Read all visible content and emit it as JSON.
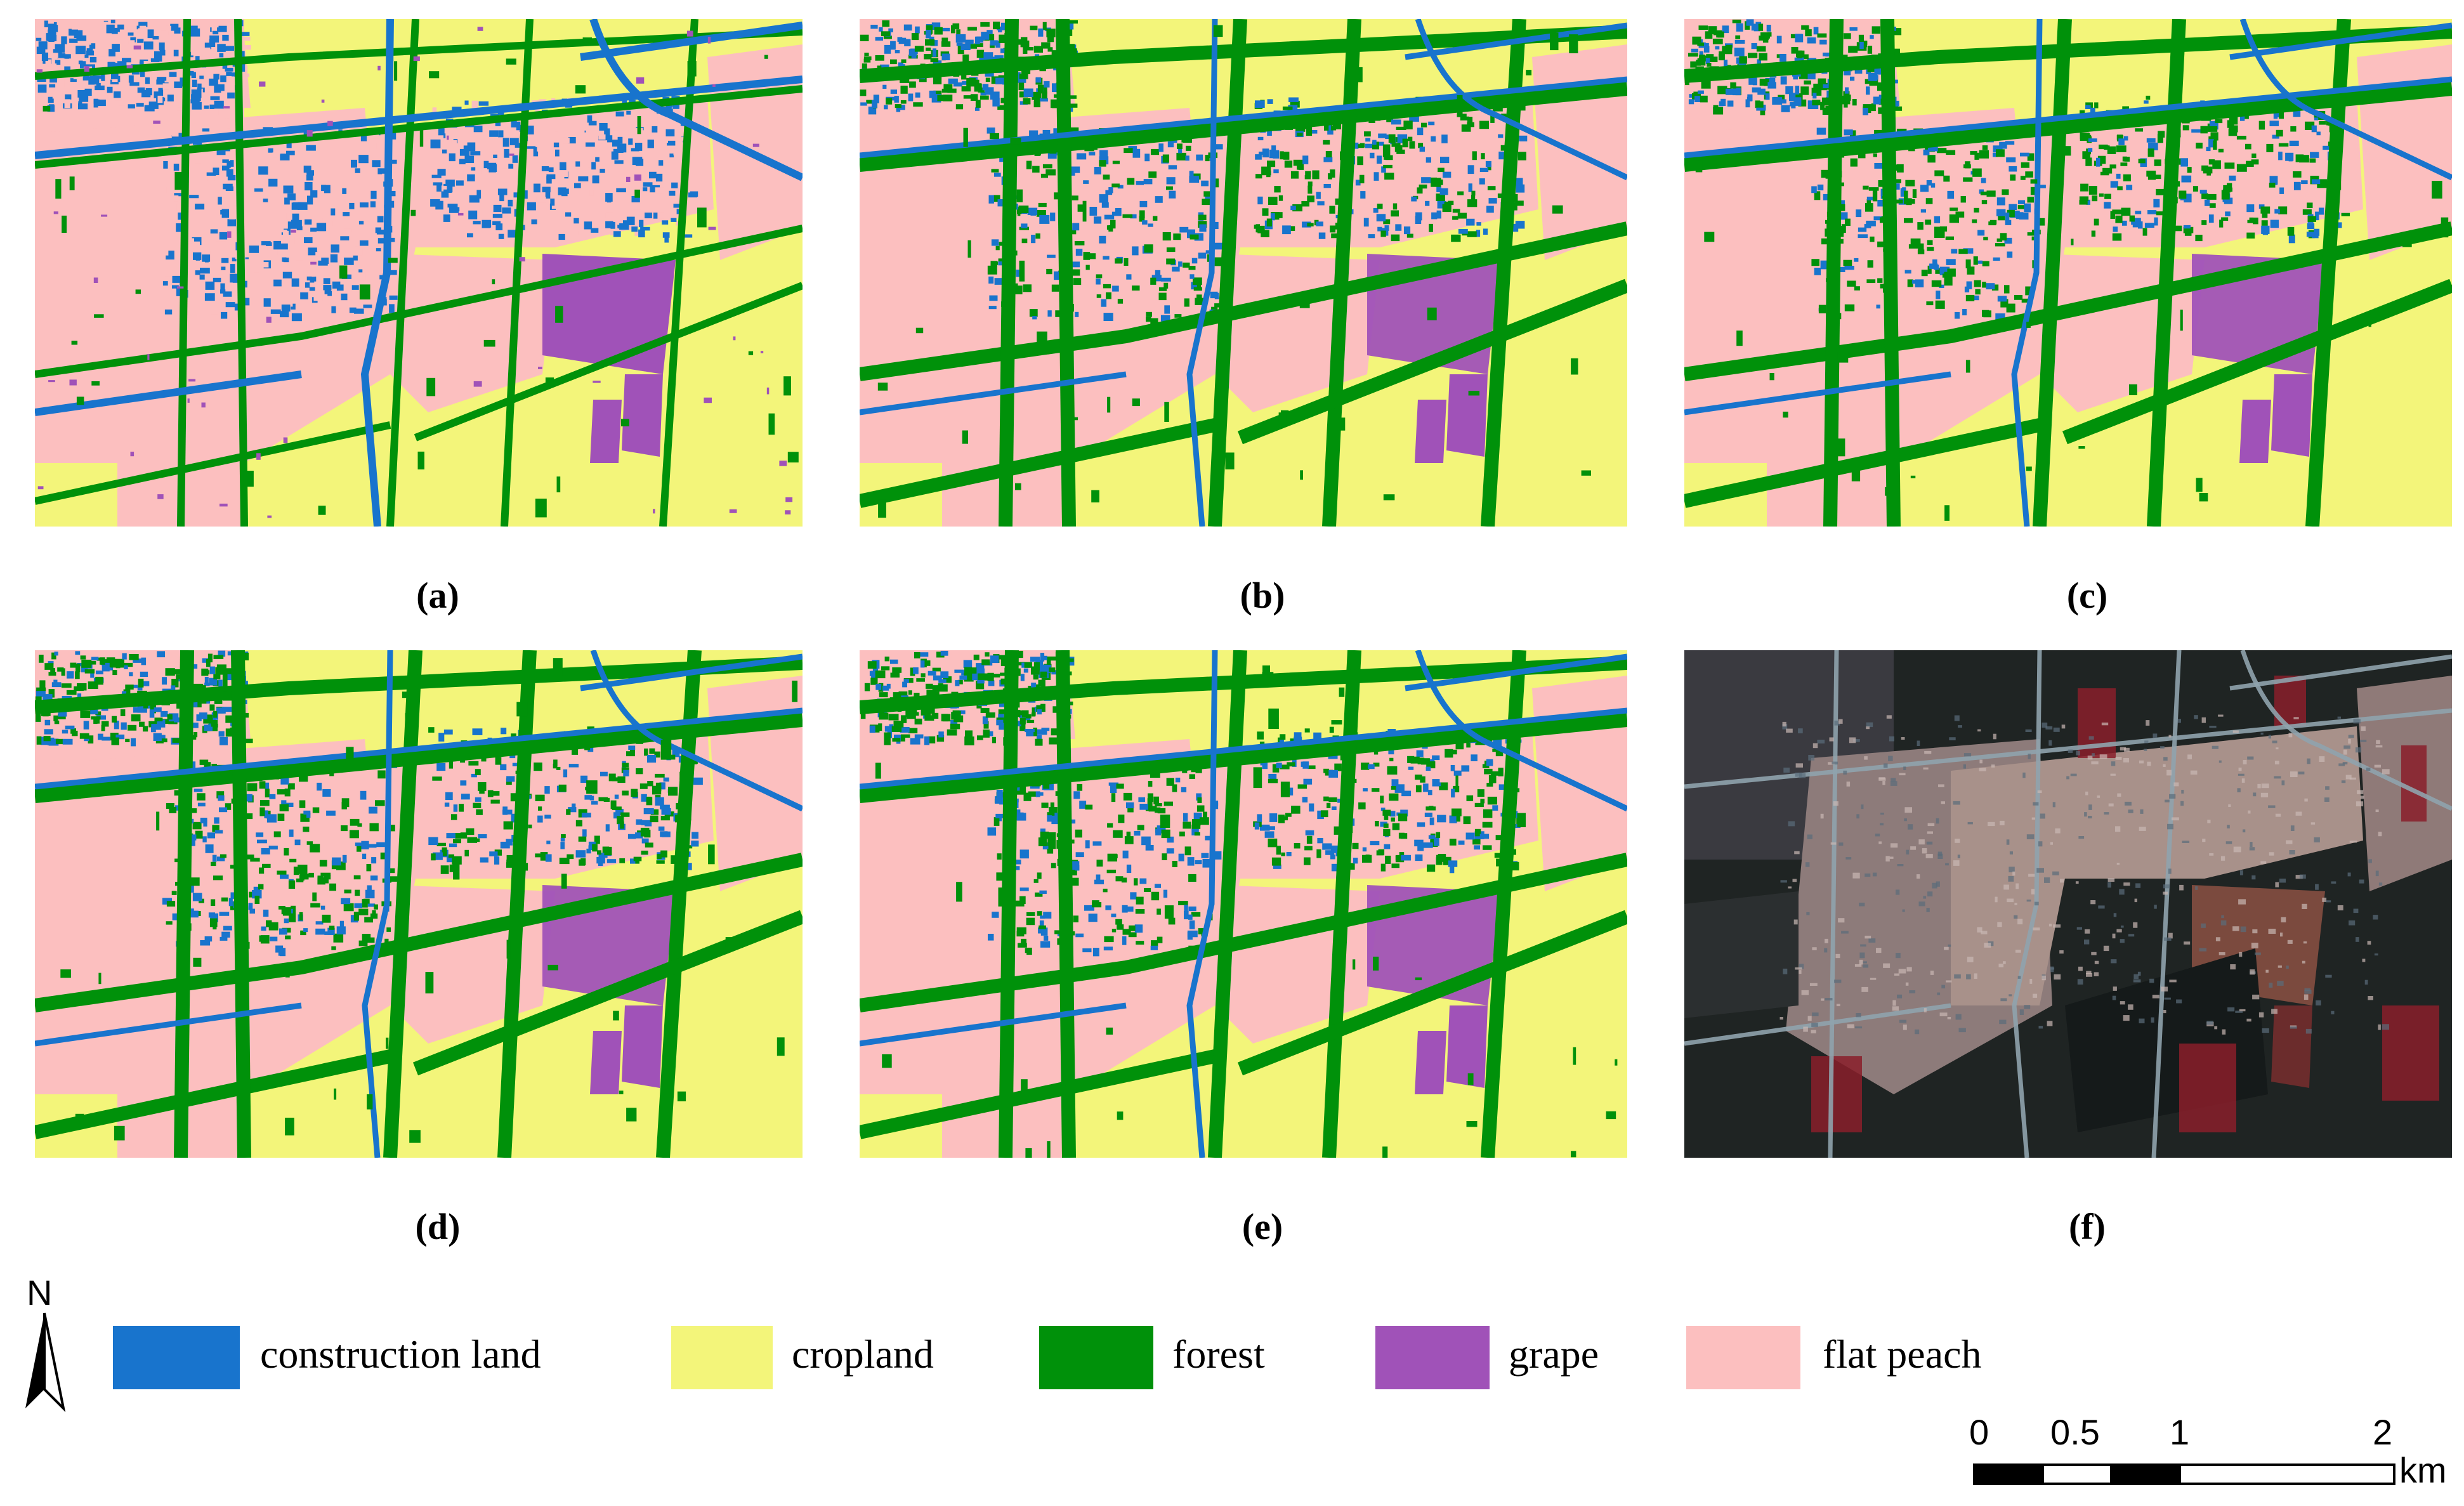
{
  "panels": [
    {
      "id": "a",
      "label": "(a)",
      "kind": "classification"
    },
    {
      "id": "b",
      "label": "(b)",
      "kind": "classification"
    },
    {
      "id": "c",
      "label": "(c)",
      "kind": "classification"
    },
    {
      "id": "d",
      "label": "(d)",
      "kind": "classification"
    },
    {
      "id": "e",
      "label": "(e)",
      "kind": "classification"
    },
    {
      "id": "f",
      "label": "(f)",
      "kind": "satellite-image"
    }
  ],
  "legend": [
    {
      "label": "construction land",
      "color": "#1874CD"
    },
    {
      "label": "cropland",
      "color": "#F3F57A"
    },
    {
      "label": "forest",
      "color": "#00910A"
    },
    {
      "label": "grape",
      "color": "#A052B8"
    },
    {
      "label": "flat peach",
      "color": "#FCBFBF"
    }
  ],
  "north_arrow": {
    "label": "N"
  },
  "scale_bar": {
    "ticks": [
      "0",
      "0.5",
      "1",
      "2"
    ],
    "unit": "km"
  }
}
